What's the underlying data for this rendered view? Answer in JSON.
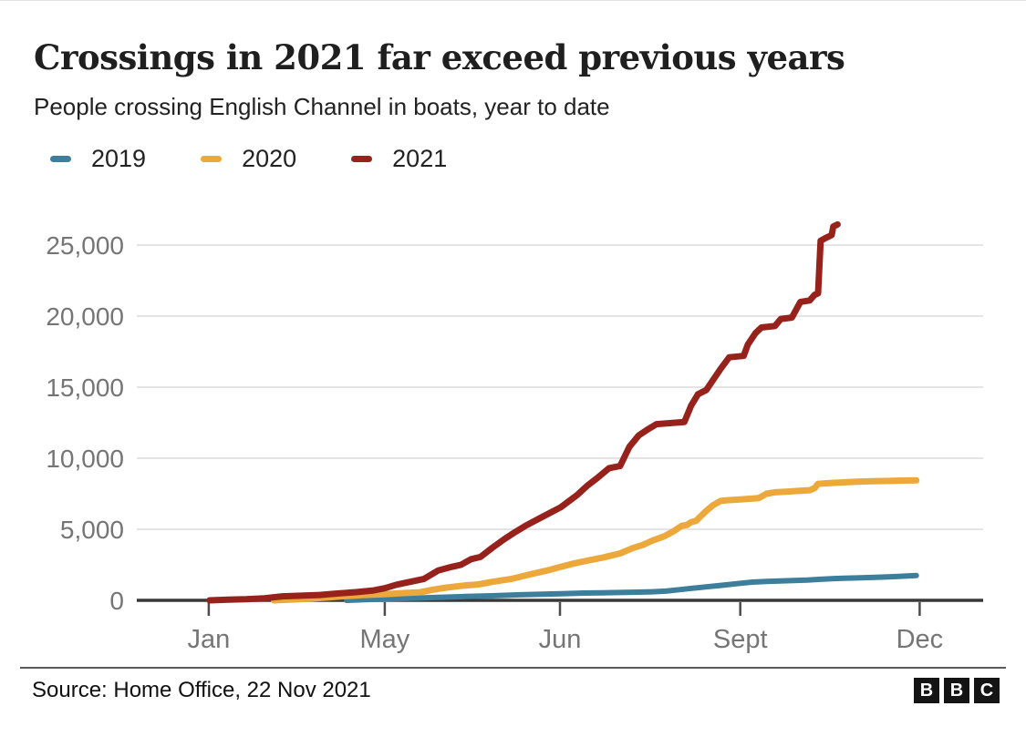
{
  "header": {
    "title": "Crossings in 2021 far exceed previous years",
    "subtitle": "People crossing English Channel in boats, year to date"
  },
  "legend": [
    {
      "label": "2019",
      "color": "#3C7E9B"
    },
    {
      "label": "2020",
      "color": "#ECA83B"
    },
    {
      "label": "2021",
      "color": "#97211B"
    }
  ],
  "footer": {
    "source": "Source: Home Office, 22 Nov 2021",
    "logo_letters": [
      "B",
      "B",
      "C"
    ]
  },
  "colors": {
    "axis_label": "#757575",
    "gridline": "#DCDCDC",
    "axis_line": "#383838",
    "tick": "#4D4D4D",
    "series_2019": "#3C7E9B",
    "series_2020": "#ECA83B",
    "series_2021": "#97211B"
  },
  "chart_data": {
    "type": "line",
    "title": "Crossings in 2021 far exceed previous years",
    "subtitle": "People crossing English Channel in boats, year to date",
    "xlabel": "",
    "ylabel": "",
    "grid": true,
    "legend_position": "top",
    "ylim": [
      0,
      27500
    ],
    "y_ticks": [
      0,
      5000,
      10000,
      15000,
      20000,
      25000
    ],
    "x_ticks": [
      {
        "label": "Jan",
        "f": 0.085
      },
      {
        "label": "May",
        "f": 0.293
      },
      {
        "label": "Jun",
        "f": 0.5
      },
      {
        "label": "Sept",
        "f": 0.713
      },
      {
        "label": "Dec",
        "f": 0.925
      }
    ],
    "series": [
      {
        "name": "2019",
        "color": "#3C7E9B",
        "points": [
          [
            0.248,
            0
          ],
          [
            0.269,
            50
          ],
          [
            0.293,
            90
          ],
          [
            0.323,
            150
          ],
          [
            0.356,
            210
          ],
          [
            0.388,
            270
          ],
          [
            0.42,
            320
          ],
          [
            0.453,
            390
          ],
          [
            0.485,
            440
          ],
          [
            0.501,
            470
          ],
          [
            0.528,
            510
          ],
          [
            0.55,
            530
          ],
          [
            0.571,
            550
          ],
          [
            0.593,
            580
          ],
          [
            0.609,
            600
          ],
          [
            0.625,
            650
          ],
          [
            0.641,
            750
          ],
          [
            0.657,
            850
          ],
          [
            0.673,
            950
          ],
          [
            0.69,
            1050
          ],
          [
            0.713,
            1200
          ],
          [
            0.727,
            1280
          ],
          [
            0.744,
            1330
          ],
          [
            0.76,
            1360
          ],
          [
            0.776,
            1390
          ],
          [
            0.792,
            1420
          ],
          [
            0.808,
            1480
          ],
          [
            0.824,
            1530
          ],
          [
            0.835,
            1560
          ],
          [
            0.851,
            1580
          ],
          [
            0.868,
            1610
          ],
          [
            0.884,
            1640
          ],
          [
            0.9,
            1680
          ],
          [
            0.921,
            1750
          ]
        ]
      },
      {
        "name": "2020",
        "color": "#ECA83B",
        "points": [
          [
            0.162,
            0
          ],
          [
            0.183,
            60
          ],
          [
            0.205,
            120
          ],
          [
            0.226,
            200
          ],
          [
            0.248,
            300
          ],
          [
            0.269,
            380
          ],
          [
            0.293,
            430
          ],
          [
            0.318,
            520
          ],
          [
            0.334,
            560
          ],
          [
            0.35,
            750
          ],
          [
            0.366,
            900
          ],
          [
            0.388,
            1050
          ],
          [
            0.404,
            1120
          ],
          [
            0.42,
            1300
          ],
          [
            0.442,
            1500
          ],
          [
            0.463,
            1800
          ],
          [
            0.485,
            2100
          ],
          [
            0.501,
            2350
          ],
          [
            0.517,
            2600
          ],
          [
            0.533,
            2800
          ],
          [
            0.55,
            3000
          ],
          [
            0.571,
            3300
          ],
          [
            0.587,
            3700
          ],
          [
            0.598,
            3900
          ],
          [
            0.609,
            4200
          ],
          [
            0.623,
            4500
          ],
          [
            0.634,
            4850
          ],
          [
            0.644,
            5250
          ],
          [
            0.65,
            5300
          ],
          [
            0.655,
            5500
          ],
          [
            0.661,
            5600
          ],
          [
            0.666,
            5900
          ],
          [
            0.673,
            6300
          ],
          [
            0.681,
            6700
          ],
          [
            0.69,
            7000
          ],
          [
            0.7,
            7050
          ],
          [
            0.713,
            7100
          ],
          [
            0.724,
            7150
          ],
          [
            0.735,
            7200
          ],
          [
            0.744,
            7500
          ],
          [
            0.754,
            7600
          ],
          [
            0.767,
            7650
          ],
          [
            0.781,
            7700
          ],
          [
            0.795,
            7750
          ],
          [
            0.801,
            7900
          ],
          [
            0.805,
            8200
          ],
          [
            0.819,
            8250
          ],
          [
            0.835,
            8300
          ],
          [
            0.851,
            8350
          ],
          [
            0.868,
            8380
          ],
          [
            0.884,
            8400
          ],
          [
            0.9,
            8420
          ],
          [
            0.921,
            8440
          ]
        ]
      },
      {
        "name": "2021",
        "color": "#97211B",
        "points": [
          [
            0.086,
            0
          ],
          [
            0.108,
            50
          ],
          [
            0.129,
            80
          ],
          [
            0.151,
            150
          ],
          [
            0.172,
            280
          ],
          [
            0.194,
            330
          ],
          [
            0.216,
            380
          ],
          [
            0.237,
            480
          ],
          [
            0.259,
            580
          ],
          [
            0.28,
            700
          ],
          [
            0.293,
            850
          ],
          [
            0.307,
            1100
          ],
          [
            0.323,
            1300
          ],
          [
            0.339,
            1500
          ],
          [
            0.356,
            2100
          ],
          [
            0.372,
            2350
          ],
          [
            0.383,
            2500
          ],
          [
            0.395,
            2900
          ],
          [
            0.406,
            3050
          ],
          [
            0.42,
            3700
          ],
          [
            0.434,
            4300
          ],
          [
            0.447,
            4800
          ],
          [
            0.461,
            5300
          ],
          [
            0.48,
            5900
          ],
          [
            0.501,
            6550
          ],
          [
            0.52,
            7400
          ],
          [
            0.533,
            8100
          ],
          [
            0.544,
            8600
          ],
          [
            0.558,
            9300
          ],
          [
            0.571,
            9450
          ],
          [
            0.582,
            10800
          ],
          [
            0.593,
            11600
          ],
          [
            0.603,
            12000
          ],
          [
            0.614,
            12400
          ],
          [
            0.647,
            12550
          ],
          [
            0.655,
            13700
          ],
          [
            0.663,
            14500
          ],
          [
            0.673,
            14800
          ],
          [
            0.682,
            15600
          ],
          [
            0.69,
            16300
          ],
          [
            0.7,
            17100
          ],
          [
            0.717,
            17200
          ],
          [
            0.722,
            18000
          ],
          [
            0.731,
            18800
          ],
          [
            0.738,
            19200
          ],
          [
            0.754,
            19300
          ],
          [
            0.761,
            19800
          ],
          [
            0.774,
            19900
          ],
          [
            0.784,
            21000
          ],
          [
            0.795,
            21100
          ],
          [
            0.801,
            21500
          ],
          [
            0.805,
            21600
          ],
          [
            0.808,
            25300
          ],
          [
            0.814,
            25500
          ],
          [
            0.821,
            25700
          ],
          [
            0.823,
            26300
          ],
          [
            0.828,
            26450
          ]
        ]
      }
    ]
  }
}
